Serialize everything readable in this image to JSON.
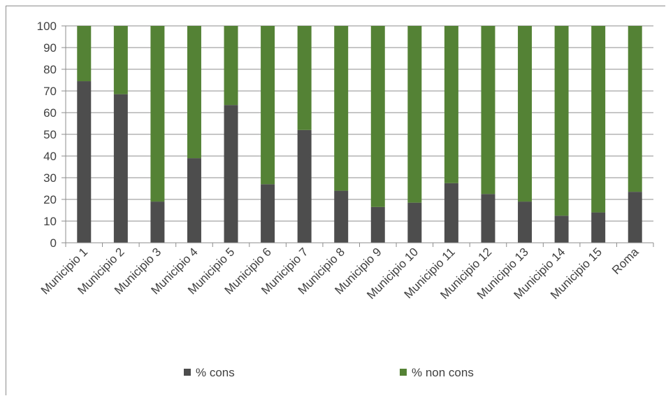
{
  "chart_data": {
    "type": "bar",
    "stacked": true,
    "categories": [
      "Municipio 1",
      "Municipio 2",
      "Municipio 3",
      "Municipio 4",
      "Municipio 5",
      "Municipio 6",
      "Municipio 7",
      "Municipio 8",
      "Municipio 9",
      "Municipio 10",
      "Municipio 11",
      "Municipio 12",
      "Municipio 13",
      "Municipio 14",
      "Municipio 15",
      "Roma"
    ],
    "series": [
      {
        "name": "% cons",
        "color": "#4d4d4d",
        "values": [
          74.5,
          68.5,
          19,
          39,
          63.5,
          27,
          52,
          24,
          16.5,
          18.5,
          27.5,
          22.5,
          19,
          12.5,
          14,
          23.5
        ]
      },
      {
        "name": "% non cons",
        "color": "#548235",
        "values": [
          25.5,
          31.5,
          81,
          61,
          36.5,
          73,
          48,
          76,
          83.5,
          81.5,
          72.5,
          77.5,
          81,
          87.5,
          86,
          76.5
        ]
      }
    ],
    "yticks": [
      "0",
      "10",
      "20",
      "30",
      "40",
      "50",
      "60",
      "70",
      "80",
      "90",
      "100"
    ],
    "ylim": [
      0,
      100
    ],
    "grid": true,
    "legend": "bottom"
  }
}
